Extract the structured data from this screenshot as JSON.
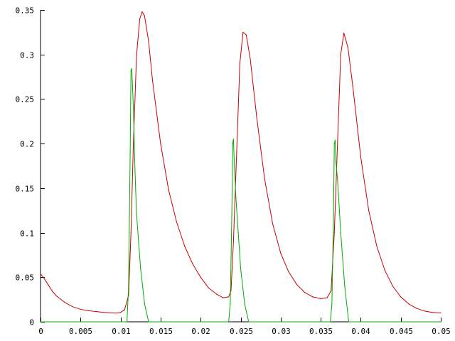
{
  "chart_data": {
    "type": "line",
    "title": "",
    "xlabel": "",
    "ylabel": "",
    "xlim": [
      0,
      0.05
    ],
    "ylim": [
      0,
      0.35
    ],
    "grid": false,
    "legend": "none",
    "x_ticks": [
      {
        "value": 0,
        "label": "0"
      },
      {
        "value": 0.005,
        "label": "0.005"
      },
      {
        "value": 0.01,
        "label": "0.01"
      },
      {
        "value": 0.015,
        "label": "0.015"
      },
      {
        "value": 0.02,
        "label": "0.02"
      },
      {
        "value": 0.025,
        "label": "0.025"
      },
      {
        "value": 0.03,
        "label": "0.03"
      },
      {
        "value": 0.035,
        "label": "0.035"
      },
      {
        "value": 0.04,
        "label": "0.04"
      },
      {
        "value": 0.045,
        "label": "0.045"
      },
      {
        "value": 0.05,
        "label": "0.05"
      }
    ],
    "y_ticks": [
      {
        "value": 0,
        "label": "0"
      },
      {
        "value": 0.05,
        "label": "0.05"
      },
      {
        "value": 0.1,
        "label": "0.1"
      },
      {
        "value": 0.15,
        "label": "0.15"
      },
      {
        "value": 0.2,
        "label": "0.2"
      },
      {
        "value": 0.25,
        "label": "0.25"
      },
      {
        "value": 0.3,
        "label": "0.3"
      },
      {
        "value": 0.35,
        "label": "0.35"
      }
    ],
    "series": [
      {
        "color": "#cc0000",
        "points": [
          [
            0,
            0.054
          ],
          [
            0.0005,
            0.048
          ],
          [
            0.001,
            0.041
          ],
          [
            0.0015,
            0.034
          ],
          [
            0.002,
            0.029
          ],
          [
            0.003,
            0.022
          ],
          [
            0.004,
            0.017
          ],
          [
            0.005,
            0.014
          ],
          [
            0.006,
            0.0125
          ],
          [
            0.007,
            0.0115
          ],
          [
            0.008,
            0.0105
          ],
          [
            0.009,
            0.01
          ],
          [
            0.0095,
            0.0098
          ],
          [
            0.01,
            0.0105
          ],
          [
            0.0105,
            0.0135
          ],
          [
            0.011,
            0.03
          ],
          [
            0.0113,
            0.1
          ],
          [
            0.0116,
            0.2
          ],
          [
            0.012,
            0.3
          ],
          [
            0.0124,
            0.34
          ],
          [
            0.0127,
            0.348
          ],
          [
            0.013,
            0.343
          ],
          [
            0.0135,
            0.315
          ],
          [
            0.014,
            0.27
          ],
          [
            0.015,
            0.2
          ],
          [
            0.016,
            0.148
          ],
          [
            0.017,
            0.112
          ],
          [
            0.018,
            0.085
          ],
          [
            0.019,
            0.065
          ],
          [
            0.02,
            0.05
          ],
          [
            0.021,
            0.038
          ],
          [
            0.022,
            0.031
          ],
          [
            0.0228,
            0.027
          ],
          [
            0.0235,
            0.028
          ],
          [
            0.0238,
            0.035
          ],
          [
            0.0241,
            0.09
          ],
          [
            0.0245,
            0.19
          ],
          [
            0.0249,
            0.29
          ],
          [
            0.0253,
            0.325
          ],
          [
            0.0257,
            0.322
          ],
          [
            0.0262,
            0.295
          ],
          [
            0.027,
            0.23
          ],
          [
            0.028,
            0.16
          ],
          [
            0.029,
            0.11
          ],
          [
            0.03,
            0.077
          ],
          [
            0.031,
            0.056
          ],
          [
            0.032,
            0.042
          ],
          [
            0.033,
            0.033
          ],
          [
            0.034,
            0.028
          ],
          [
            0.035,
            0.026
          ],
          [
            0.0358,
            0.027
          ],
          [
            0.0363,
            0.035
          ],
          [
            0.0367,
            0.1
          ],
          [
            0.0371,
            0.2
          ],
          [
            0.0375,
            0.3
          ],
          [
            0.0379,
            0.324
          ],
          [
            0.0384,
            0.308
          ],
          [
            0.039,
            0.265
          ],
          [
            0.04,
            0.185
          ],
          [
            0.041,
            0.125
          ],
          [
            0.042,
            0.085
          ],
          [
            0.043,
            0.058
          ],
          [
            0.044,
            0.04
          ],
          [
            0.045,
            0.028
          ],
          [
            0.046,
            0.02
          ],
          [
            0.047,
            0.015
          ],
          [
            0.048,
            0.012
          ],
          [
            0.049,
            0.0105
          ],
          [
            0.05,
            0.01
          ]
        ]
      },
      {
        "color": "#00aa00",
        "points": [
          [
            0,
            0
          ],
          [
            0.0108,
            0
          ],
          [
            0.011,
            0.04
          ],
          [
            0.0112,
            0.19
          ],
          [
            0.0113,
            0.282
          ],
          [
            0.0114,
            0.284
          ],
          [
            0.0116,
            0.24
          ],
          [
            0.0118,
            0.17
          ],
          [
            0.012,
            0.12
          ],
          [
            0.0125,
            0.06
          ],
          [
            0.013,
            0.02
          ],
          [
            0.0135,
            0
          ],
          [
            0.0235,
            0
          ],
          [
            0.0237,
            0.02
          ],
          [
            0.0239,
            0.12
          ],
          [
            0.024,
            0.2
          ],
          [
            0.0241,
            0.205
          ],
          [
            0.0242,
            0.18
          ],
          [
            0.0244,
            0.14
          ],
          [
            0.0247,
            0.1
          ],
          [
            0.025,
            0.06
          ],
          [
            0.0255,
            0.02
          ],
          [
            0.026,
            0
          ],
          [
            0.0362,
            0
          ],
          [
            0.0364,
            0.02
          ],
          [
            0.0366,
            0.12
          ],
          [
            0.0367,
            0.2
          ],
          [
            0.0368,
            0.204
          ],
          [
            0.0369,
            0.18
          ],
          [
            0.0371,
            0.16
          ],
          [
            0.0375,
            0.1
          ],
          [
            0.038,
            0.04
          ],
          [
            0.0385,
            0
          ],
          [
            0.05,
            0
          ]
        ]
      }
    ]
  }
}
